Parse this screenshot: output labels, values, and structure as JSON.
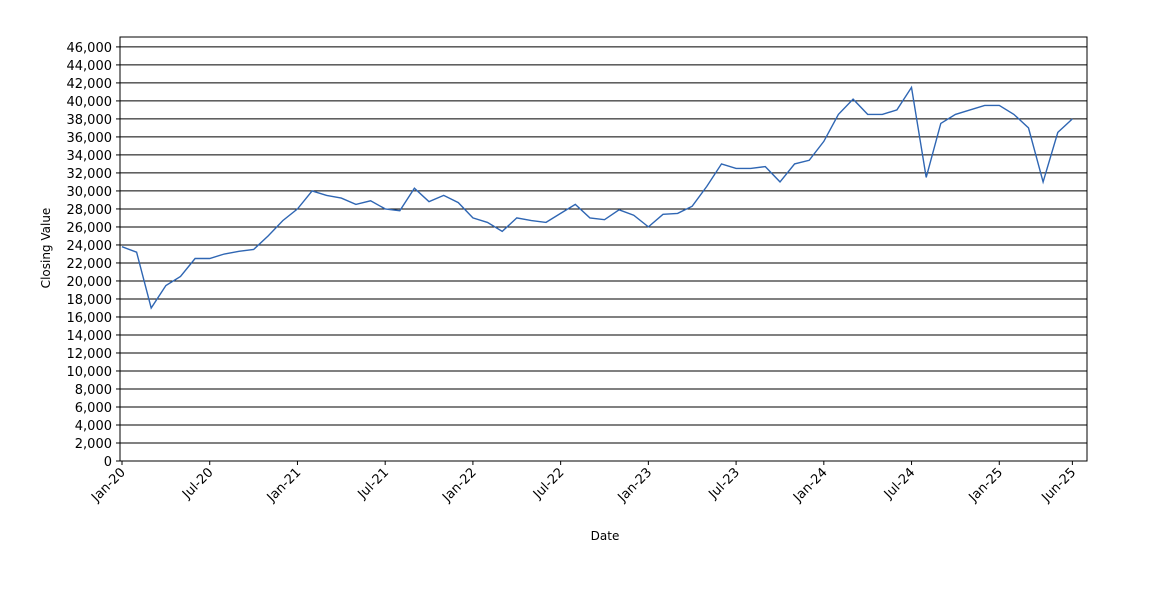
{
  "chart_data": {
    "type": "line",
    "x_label": "Date",
    "y_label": "Closing Value",
    "x": [
      "2020-01",
      "2020-02",
      "2020-03",
      "2020-04",
      "2020-05",
      "2020-06",
      "2020-07",
      "2020-08",
      "2020-09",
      "2020-10",
      "2020-11",
      "2020-12",
      "2021-01",
      "2021-02",
      "2021-03",
      "2021-04",
      "2021-05",
      "2021-06",
      "2021-07",
      "2021-08",
      "2021-09",
      "2021-10",
      "2021-11",
      "2021-12",
      "2022-01",
      "2022-02",
      "2022-03",
      "2022-04",
      "2022-05",
      "2022-06",
      "2022-07",
      "2022-08",
      "2022-09",
      "2022-10",
      "2022-11",
      "2022-12",
      "2023-01",
      "2023-02",
      "2023-03",
      "2023-04",
      "2023-05",
      "2023-06",
      "2023-07",
      "2023-08",
      "2023-09",
      "2023-10",
      "2023-11",
      "2023-12",
      "2024-01",
      "2024-02",
      "2024-03",
      "2024-04",
      "2024-05",
      "2024-06",
      "2024-07",
      "2024-08",
      "2024-09",
      "2024-10",
      "2024-11",
      "2024-12",
      "2025-01",
      "2025-02",
      "2025-03",
      "2025-04",
      "2025-05",
      "2025-06"
    ],
    "series": [
      {
        "name": "Closing Value",
        "color": "#2f66b3",
        "values": [
          23800,
          23200,
          17000,
          19500,
          20500,
          22500,
          22500,
          23000,
          23300,
          23500,
          25000,
          26700,
          28000,
          30000,
          29500,
          29200,
          28500,
          28900,
          28000,
          27800,
          30300,
          28800,
          29500,
          28700,
          27000,
          26500,
          25500,
          27000,
          26700,
          26500,
          27500,
          28500,
          27000,
          26800,
          27900,
          27300,
          26000,
          27400,
          27500,
          28300,
          30500,
          33000,
          32500,
          32500,
          32700,
          31000,
          33000,
          33400,
          35500,
          38500,
          40200,
          38500,
          38500,
          39000,
          41500,
          31500,
          37500,
          38500,
          39000,
          39500,
          39500,
          38500,
          37000,
          31000,
          36500,
          38000
        ]
      }
    ],
    "xlim": [
      "2020-01",
      "2025-07"
    ],
    "xticks": [
      {
        "value": "2020-01",
        "label": "Jan-20"
      },
      {
        "value": "2020-07",
        "label": "Jul-20"
      },
      {
        "value": "2021-01",
        "label": "Jan-21"
      },
      {
        "value": "2021-07",
        "label": "Jul-21"
      },
      {
        "value": "2022-01",
        "label": "Jan-22"
      },
      {
        "value": "2022-07",
        "label": "Jul-22"
      },
      {
        "value": "2023-01",
        "label": "Jan-23"
      },
      {
        "value": "2023-07",
        "label": "Jul-23"
      },
      {
        "value": "2024-01",
        "label": "Jan-24"
      },
      {
        "value": "2024-07",
        "label": "Jul-24"
      },
      {
        "value": "2025-01",
        "label": "Jan-25"
      },
      {
        "value": "2025-06",
        "label": "Jun-25"
      }
    ],
    "ylim": [
      0,
      47100
    ],
    "yticks": [
      0,
      {
        "value": 2000,
        "label": "2,000"
      },
      {
        "value": 4000,
        "label": "4,000"
      },
      {
        "value": 6000,
        "label": "6,000"
      },
      {
        "value": 8000,
        "label": "8,000"
      },
      {
        "value": 10000,
        "label": "10,000"
      },
      {
        "value": 12000,
        "label": "12,000"
      },
      {
        "value": 14000,
        "label": "14,000"
      },
      {
        "value": 16000,
        "label": "16,000"
      },
      {
        "value": 18000,
        "label": "18,000"
      },
      {
        "value": 20000,
        "label": "20,000"
      },
      {
        "value": 22000,
        "label": "22,000"
      },
      {
        "value": 24000,
        "label": "24,000"
      },
      {
        "value": 26000,
        "label": "26,000"
      },
      {
        "value": 28000,
        "label": "28,000"
      },
      {
        "value": 30000,
        "label": "30,000"
      },
      {
        "value": 32000,
        "label": "32,000"
      },
      {
        "value": 34000,
        "label": "34,000"
      },
      {
        "value": 36000,
        "label": "36,000"
      },
      {
        "value": 38000,
        "label": "38,000"
      },
      {
        "value": 40000,
        "label": "40,000"
      },
      {
        "value": 42000,
        "label": "42,000"
      },
      {
        "value": 44000,
        "label": "44,000"
      },
      {
        "value": 46000,
        "label": "46,000"
      }
    ],
    "grid": true
  }
}
